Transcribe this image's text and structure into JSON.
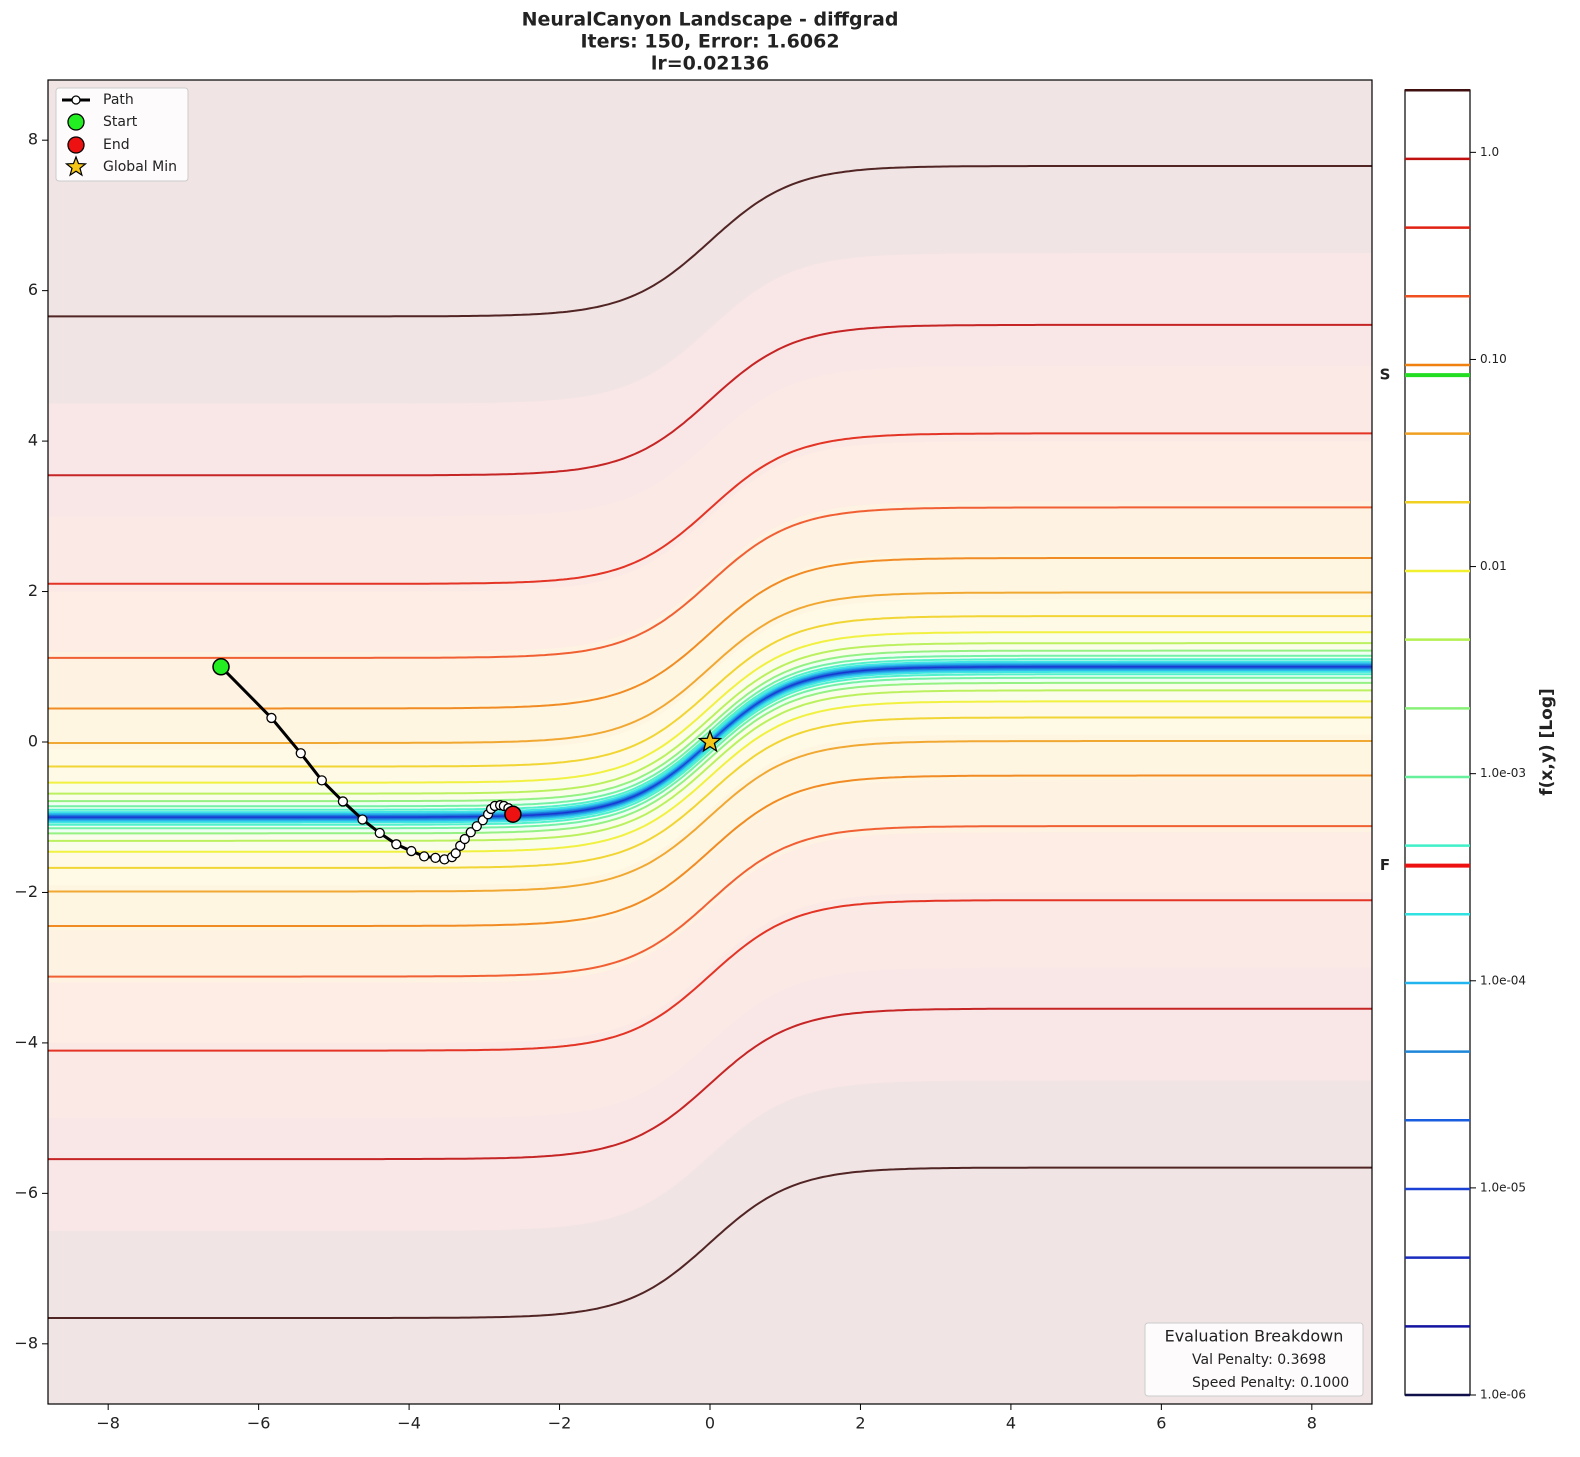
{
  "chart_data": {
    "type": "contour",
    "title": [
      "NeuralCanyon Landscape - diffgrad",
      "Iters: 150, Error: 1.6062",
      "lr=0.02136"
    ],
    "xlim": [
      -8.8,
      8.8
    ],
    "ylim": [
      -8.8,
      8.8
    ],
    "xticks": [
      {
        "value": -8,
        "label": "−8"
      },
      {
        "value": -6,
        "label": "−6"
      },
      {
        "value": -4,
        "label": "−4"
      },
      {
        "value": -2,
        "label": "−2"
      },
      0,
      2,
      4,
      6,
      8
    ],
    "yticks": [
      {
        "value": -8,
        "label": "−8"
      },
      {
        "value": -6,
        "label": "−6"
      },
      {
        "value": -4,
        "label": "−4"
      },
      {
        "value": -2,
        "label": "−2"
      },
      0,
      2,
      4,
      6,
      8
    ],
    "levels": [
      1e-06,
      2.146e-06,
      4.604e-06,
      9.879e-06,
      2.12e-05,
      4.548e-05,
      9.758e-05,
      0.0002094,
      0.0004493,
      0.000964,
      0.002068,
      0.004438,
      0.009523,
      0.020434,
      0.043845,
      0.094079,
      0.201867,
      0.43315,
      0.92943,
      1.9943
    ],
    "level_colors": [
      "#10104a",
      "#1414a0",
      "#1a2cc0",
      "#1a40d4",
      "#1a5ee0",
      "#1e86d8",
      "#22b4ee",
      "#30e2e2",
      "#40f0c8",
      "#66f09c",
      "#88f078",
      "#b4f050",
      "#f0f030",
      "#f0d020",
      "#f0a020",
      "#f08010",
      "#f05020",
      "#e02010",
      "#c01010",
      "#401010"
    ],
    "colorbar": {
      "label": "f(x,y) [Log]",
      "lim": [
        1e-06,
        2
      ],
      "log": true,
      "ticks": [
        {
          "value": 1,
          "label": "1.0"
        },
        {
          "value": 0.1,
          "label": "0.10"
        },
        0.01,
        {
          "value": 0.001,
          "label": "1.0e-03"
        },
        {
          "value": 0.0001,
          "label": "1.0e-04"
        },
        {
          "value": 1e-05,
          "label": "1.0e-05"
        },
        {
          "value": 1e-06,
          "label": "1.0e-06"
        }
      ],
      "markers": [
        {
          "label": "S",
          "value": 0.084,
          "color": "#22dd22"
        },
        {
          "label": "F",
          "value": 0.00036,
          "color": "#ee1111"
        }
      ]
    },
    "path": {
      "name": "Path",
      "color": "#000000",
      "x": [
        -6.5,
        -5.83,
        -5.44,
        -5.16,
        -4.88,
        -4.62,
        -4.39,
        -4.17,
        -3.97,
        -3.8,
        -3.65,
        -3.53,
        -3.43,
        -3.38,
        -3.32,
        -3.26,
        -3.18,
        -3.1,
        -3.02,
        -2.95,
        -2.91,
        -2.86,
        -2.79,
        -2.74,
        -2.68,
        -2.62
      ],
      "y": [
        1.0,
        0.32,
        -0.15,
        -0.51,
        -0.79,
        -1.03,
        -1.21,
        -1.36,
        -1.45,
        -1.52,
        -1.54,
        -1.56,
        -1.53,
        -1.48,
        -1.38,
        -1.29,
        -1.2,
        -1.12,
        -1.04,
        -0.96,
        -0.89,
        -0.85,
        -0.84,
        -0.85,
        -0.88,
        -0.96
      ]
    },
    "start": {
      "name": "Start",
      "x": -6.5,
      "y": 1.0,
      "color": "#22ee22"
    },
    "end": {
      "name": "End",
      "x": -2.62,
      "y": -0.96,
      "color": "#ee1111"
    },
    "global_min": {
      "name": "Global Min",
      "x": 0,
      "y": 0,
      "color": "#f5c518"
    },
    "legend": "upper left",
    "evaluation": {
      "title": "Evaluation Breakdown",
      "lines": [
        "Val Penalty: 0.3698",
        "Speed Penalty: 0.1000"
      ]
    }
  }
}
